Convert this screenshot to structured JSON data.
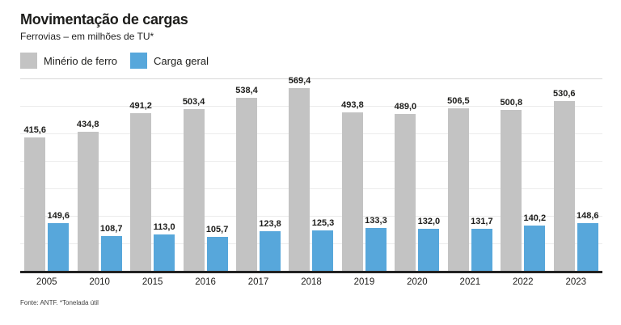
{
  "header": {
    "title": "Movimentação de cargas",
    "subtitle": "Ferrovias – em milhões de TU*"
  },
  "legend": {
    "items": [
      {
        "label": "Minério de ferro",
        "color": "#c3c3c3"
      },
      {
        "label": "Carga geral",
        "color": "#57a7db"
      }
    ]
  },
  "chart_data": {
    "type": "bar",
    "title": "Movimentação de cargas",
    "subtitle": "Ferrovias – em milhões de TU*",
    "unit": "milhões de TU (tonelada útil)",
    "categories": [
      "2005",
      "2010",
      "2015",
      "2016",
      "2017",
      "2018",
      "2019",
      "2020",
      "2021",
      "2022",
      "2023"
    ],
    "series": [
      {
        "name": "Minério de ferro",
        "color": "#c3c3c3",
        "values": [
          415.6,
          434.8,
          491.2,
          503.4,
          538.4,
          569.4,
          493.8,
          489.0,
          506.5,
          500.8,
          530.6
        ],
        "labels": [
          "415,6",
          "434,8",
          "491,2",
          "503,4",
          "538,4",
          "569,4",
          "493,8",
          "489,0",
          "506,5",
          "500,8",
          "530,6"
        ]
      },
      {
        "name": "Carga geral",
        "color": "#57a7db",
        "values": [
          149.6,
          108.7,
          113.0,
          105.7,
          123.8,
          125.3,
          133.3,
          132.0,
          131.7,
          140.2,
          148.6
        ],
        "labels": [
          "149,6",
          "108,7",
          "113,0",
          "105,7",
          "123,8",
          "125,3",
          "133,3",
          "132,0",
          "131,7",
          "140,2",
          "148,6"
        ]
      }
    ],
    "ylim": [
      0,
      600
    ],
    "gridline_intervals": 7,
    "grid": true,
    "value_labels_shown": true,
    "legend_position": "top-left",
    "xlabel": "",
    "ylabel": ""
  },
  "footer": {
    "source": "Fonte: ANTF. *Tonelada útil"
  }
}
